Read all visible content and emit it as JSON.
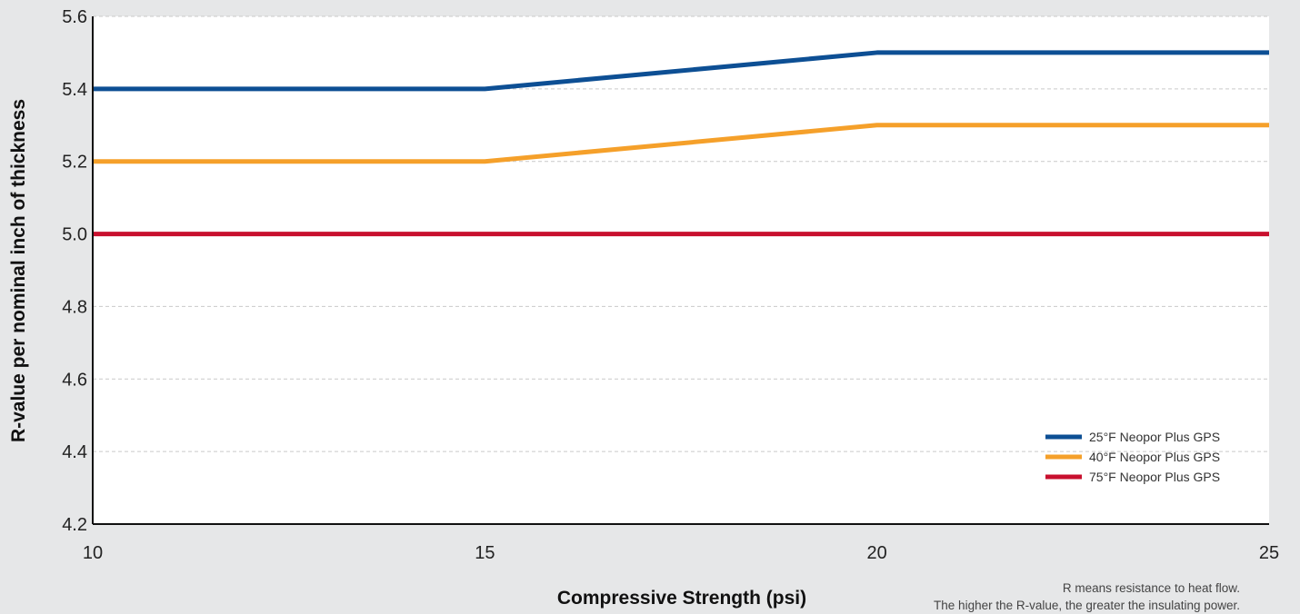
{
  "chart_data": {
    "type": "line",
    "title": "",
    "xlabel": "Compressive Strength (psi)",
    "ylabel": "R-value per nominal inch of thickness",
    "x": [
      10,
      15,
      20,
      25
    ],
    "xlim": [
      10,
      25
    ],
    "ylim": [
      4.2,
      5.6
    ],
    "xticks": [
      "10",
      "15",
      "20",
      "25"
    ],
    "yticks": [
      "4.2",
      "4.4",
      "4.6",
      "4.8",
      "5.0",
      "5.2",
      "5.4",
      "5.6"
    ],
    "grid": "horizontal dashed",
    "legend_position": "bottom-right",
    "series": [
      {
        "name": "25°F Neopor Plus GPS",
        "color": "#0d4f94",
        "values": [
          5.4,
          5.4,
          5.5,
          5.5
        ]
      },
      {
        "name": "40°F Neopor Plus GPS",
        "color": "#f5a02a",
        "values": [
          5.2,
          5.2,
          5.3,
          5.3
        ]
      },
      {
        "name": "75°F Neopor Plus GPS",
        "color": "#c8102e",
        "values": [
          5.0,
          5.0,
          5.0,
          5.0
        ]
      }
    ]
  },
  "footnote": {
    "line1": "R means resistance to heat flow.",
    "line2": "The higher the R-value, the greater the insulating power."
  }
}
